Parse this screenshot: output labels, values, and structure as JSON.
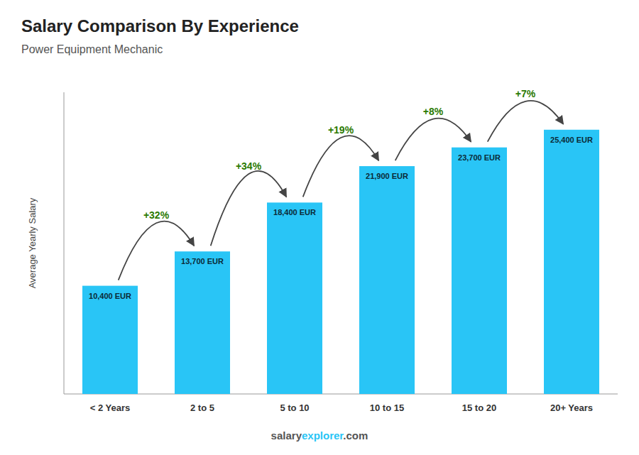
{
  "chart_data": {
    "type": "bar",
    "title": "Salary Comparison By Experience",
    "subtitle": "Power Equipment Mechanic",
    "y_label": "Average Yearly Salary",
    "categories": [
      "< 2 Years",
      "2 to 5",
      "5 to 10",
      "10 to 15",
      "15 to 20",
      "20+ Years"
    ],
    "values": [
      10400,
      13700,
      18400,
      21900,
      23700,
      25400
    ],
    "value_labels": [
      "10,400 EUR",
      "13,700 EUR",
      "18,400 EUR",
      "21,900 EUR",
      "23,700 EUR",
      "25,400 EUR"
    ],
    "data_labels": true,
    "annotations": [
      "+32%",
      "+34%",
      "+19%",
      "+8%",
      "+7%"
    ],
    "watermark": [
      "salary",
      "explorer",
      ".com"
    ],
    "color": "#29C5F6",
    "ylim": [
      0,
      29000
    ],
    "tick_labels": "x",
    "grid": false
  }
}
